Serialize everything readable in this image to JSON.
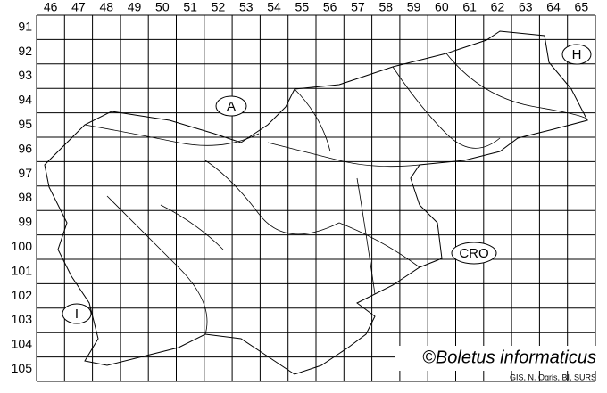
{
  "map": {
    "columns": [
      "46",
      "47",
      "48",
      "49",
      "50",
      "51",
      "52",
      "53",
      "54",
      "55",
      "56",
      "57",
      "58",
      "59",
      "60",
      "61",
      "62",
      "63",
      "64",
      "65"
    ],
    "rows": [
      "91",
      "92",
      "93",
      "94",
      "95",
      "96",
      "97",
      "98",
      "99",
      "100",
      "101",
      "102",
      "103",
      "104",
      "105"
    ],
    "labels": [
      "A",
      "H",
      "CRO",
      "I"
    ],
    "copyright": "©Boletus informaticus",
    "credit": "GIS, N. Ogris, BI, SURS"
  }
}
